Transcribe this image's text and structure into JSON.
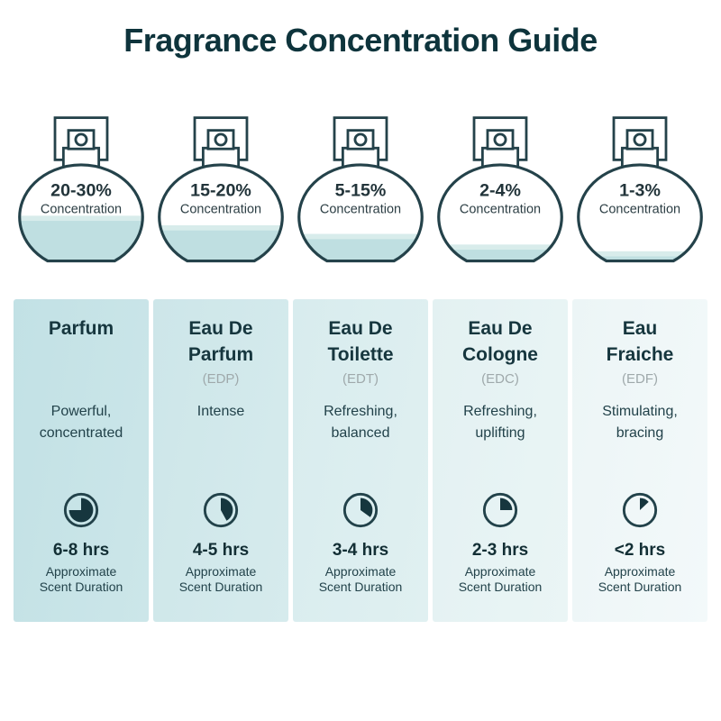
{
  "title": "Fragrance Concentration Guide",
  "colors": {
    "title_ink": "#0e343c",
    "outline_ink": "#24424a",
    "text_dark": "#16363e",
    "abbr_gray": "#9fa9ab",
    "liquid": "#bfdfe1",
    "liquid_highlight": "#d8eceb",
    "card_backgrounds": [
      "#c2e1e5",
      "#cde6e9",
      "#d8ecee",
      "#e3f1f2",
      "#ecf5f6"
    ]
  },
  "labels": {
    "concentration": "Concentration",
    "duration_caption": "Approximate\nScent Duration"
  },
  "columns": [
    {
      "concentration": "20-30%",
      "name": "Parfum",
      "abbr": "",
      "description": "Powerful,\nconcentrated",
      "duration": "6-8 hrs",
      "fill_percent": 47,
      "clock_percent": 75,
      "card_bg": "#c2e1e5",
      "card_bg_light": "#cce6e9"
    },
    {
      "concentration": "15-20%",
      "name": "Eau De\nParfum",
      "abbr": "(EDP)",
      "description": "Intense",
      "duration": "4-5 hrs",
      "fill_percent": 37,
      "clock_percent": 42,
      "card_bg": "#cde6e9",
      "card_bg_light": "#d6ebed"
    },
    {
      "concentration": "5-15%",
      "name": "Eau De\nToilette",
      "abbr": "(EDT)",
      "description": "Refreshing,\nbalanced",
      "duration": "3-4 hrs",
      "fill_percent": 28,
      "clock_percent": 35,
      "card_bg": "#d8ecee",
      "card_bg_light": "#e0f0f1"
    },
    {
      "concentration": "2-4%",
      "name": "Eau De\nCologne",
      "abbr": "(EDC)",
      "description": "Refreshing,\nuplifting",
      "duration": "2-3 hrs",
      "fill_percent": 17,
      "clock_percent": 25,
      "card_bg": "#e3f1f2",
      "card_bg_light": "#eaf5f5"
    },
    {
      "concentration": "1-3%",
      "name": "Eau\nFraiche",
      "abbr": "(EDF)",
      "description": "Stimulating,\nbracing",
      "duration": "<2 hrs",
      "fill_percent": 10,
      "clock_percent": 13,
      "card_bg": "#ecf5f6",
      "card_bg_light": "#f3f9fa"
    }
  ]
}
